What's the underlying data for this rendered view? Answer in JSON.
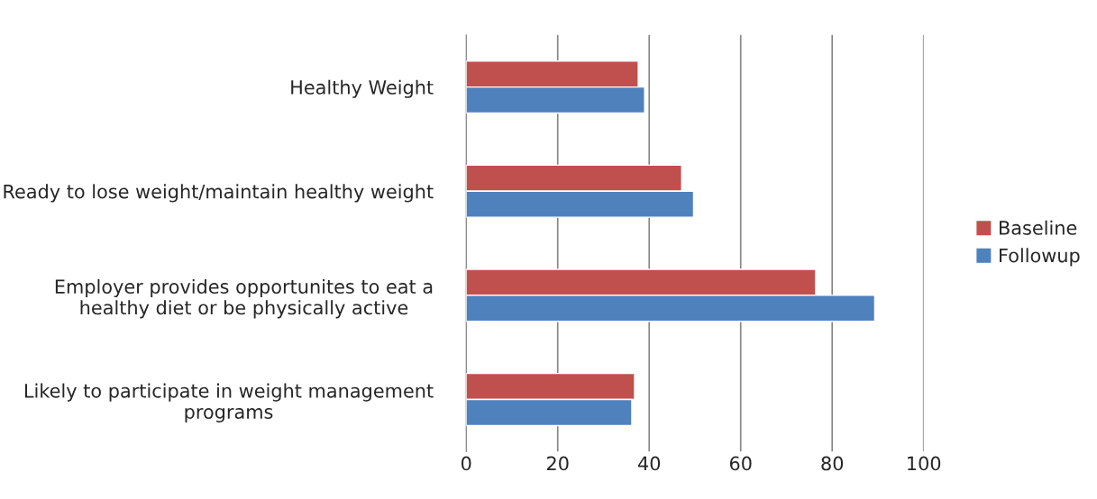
{
  "chart_data": {
    "type": "bar",
    "orientation": "horizontal",
    "categories": [
      "Healthy Weight",
      "Ready to lose weight/maintain healthy weight",
      "Employer provides opportunites to eat a healthy diet or be physically active",
      "Likely to participate in weight management programs"
    ],
    "series": [
      {
        "name": "Baseline",
        "color": "#c0504d",
        "values": [
          37.6,
          47.1,
          76.4,
          36.8
        ]
      },
      {
        "name": "Followup",
        "color": "#4f81bd",
        "values": [
          39.0,
          49.7,
          89.3,
          36.2
        ]
      }
    ],
    "xlim": [
      0,
      100
    ],
    "xticks": [
      0,
      20,
      40,
      60,
      80,
      100
    ],
    "grid": "x",
    "legend": "right"
  }
}
